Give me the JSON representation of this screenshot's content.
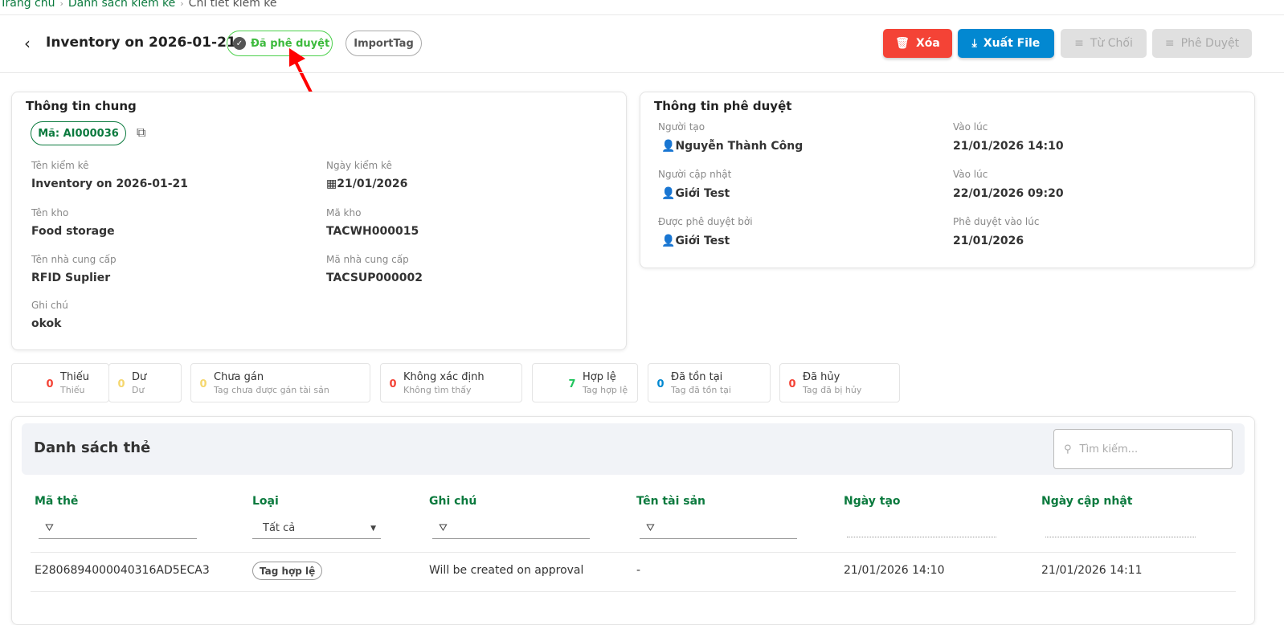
{
  "breadcrumb": [
    "Trang chủ",
    "Danh sách kiểm kê",
    "Chi tiết kiểm kê"
  ],
  "header": {
    "title": "Inventory on 2026-01-21",
    "status": "Đã phê duyệt",
    "import_label": "ImportTag",
    "buttons": {
      "delete": "Xóa",
      "export": "Xuất File",
      "reject": "Từ Chối",
      "approve": "Phê Duyệt"
    }
  },
  "colors": {
    "primary": "#0b7a3e",
    "delete": "#f44336",
    "export": "#0288d1",
    "disabled": "#e0e0e0",
    "approved": "#3cba3c"
  },
  "general": {
    "title": "Thông tin chung",
    "code": "Mã: AI000036",
    "fields": [
      {
        "label": "Tên kiểm kê",
        "value": "Inventory on 2026-01-21"
      },
      {
        "label": "Ngày kiểm kê",
        "value": "21/01/2026"
      },
      {
        "label": "Tên kho",
        "value": "Food storage"
      },
      {
        "label": "Mã kho",
        "value": "TACWH000015"
      },
      {
        "label": "Tên nhà cung cấp",
        "value": "RFID Suplier"
      },
      {
        "label": "Mã nhà cung cấp",
        "value": "TACSUP000002"
      },
      {
        "label": "Ghi chú",
        "value": "okok"
      }
    ]
  },
  "approval": {
    "title": "Thông tin phê duyệt",
    "fields": [
      {
        "label": "Người tạo",
        "value": "Nguyễn Thành Công"
      },
      {
        "label": "Vào lúc",
        "value": "21/01/2026 14:10"
      },
      {
        "label": "Người cập nhật",
        "value": "Giới Test"
      },
      {
        "label": "Vào lúc",
        "value": "22/01/2026 09:20"
      },
      {
        "label": "Được phê duyệt bởi",
        "value": "Giới Test"
      },
      {
        "label": "Phê duyệt vào lúc",
        "value": "21/01/2026"
      }
    ]
  },
  "stats": [
    {
      "count": "0",
      "title": "Thiếu",
      "sub": "Thiếu",
      "color": "#f44336"
    },
    {
      "count": "0",
      "title": "Dư",
      "sub": "Dư",
      "color": "#f5d76e"
    },
    {
      "count": "0",
      "title": "Chưa gán",
      "sub": "Tag chưa được gán tài sản",
      "color": "#f5d76e"
    },
    {
      "count": "0",
      "title": "Không xác định",
      "sub": "Không tìm thấy",
      "color": "#f44336"
    },
    {
      "count": "7",
      "title": "Hợp lệ",
      "sub": "Tag hợp lệ",
      "color": "#22c55e"
    },
    {
      "count": "0",
      "title": "Đã tồn tại",
      "sub": "Tag đã tồn tại",
      "color": "#0288d1"
    },
    {
      "count": "0",
      "title": "Đã hủy",
      "sub": "Tag đã bị hủy",
      "color": "#f44336"
    }
  ],
  "table": {
    "title": "Danh sách thẻ",
    "search_placeholder": "Tìm kiếm...",
    "columns": [
      "Mã thẻ",
      "Loại",
      "Ghi chú",
      "Tên tài sản",
      "Ngày tạo",
      "Ngày cập nhật"
    ],
    "type_filter": "Tất cả",
    "rows": [
      {
        "code": "E2806894000040316AD5ECA3",
        "type": "Tag hợp lệ",
        "note": "Will be created on approval",
        "asset": "-",
        "created": "21/01/2026 14:10",
        "updated": "21/01/2026 14:11"
      }
    ]
  }
}
